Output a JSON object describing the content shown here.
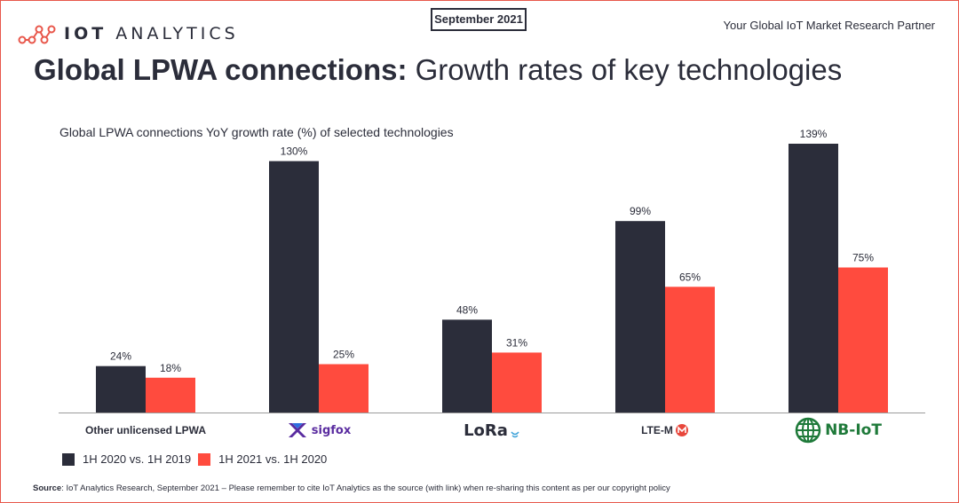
{
  "header": {
    "logo_iot": "IOT",
    "logo_analytics": "ANALYTICS",
    "date_badge": "September 2021",
    "tagline": "Your Global IoT Market Research Partner"
  },
  "title": {
    "bold": "Global LPWA connections:",
    "normal": " Growth rates of key technologies"
  },
  "footer": {
    "source_label": "Source",
    "source_text": ": IoT Analytics Research, September 2021 – Please remember to cite IoT Analytics as the source (with link) when re-sharing this content as per our copyright policy"
  },
  "colors": {
    "series1": "#2b2d3a",
    "series2": "#ff4b3e",
    "accent": "#e8574b"
  },
  "chart_data": {
    "type": "bar",
    "title": "Global LPWA connections YoY growth rate (%) of selected technologies",
    "categories": [
      "Other unlicensed LPWA",
      "sigfox",
      "LoRa",
      "LTE-M",
      "NB-IoT"
    ],
    "series": [
      {
        "name": "1H 2020 vs. 1H 2019",
        "values": [
          24,
          130,
          48,
          99,
          139
        ]
      },
      {
        "name": "1H 2021 vs. 1H 2020",
        "values": [
          18,
          25,
          31,
          65,
          75
        ]
      }
    ],
    "data_labels": {
      "series1": [
        "24%",
        "130%",
        "48%",
        "99%",
        "139%"
      ],
      "series2": [
        "18%",
        "25%",
        "31%",
        "65%",
        "75%"
      ]
    },
    "ylim": [
      0,
      139
    ],
    "grid": false,
    "legend_placement": "bottom-left"
  }
}
